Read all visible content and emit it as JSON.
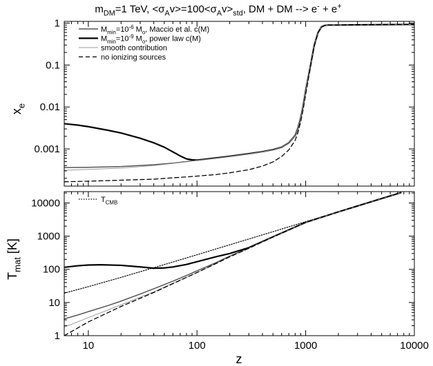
{
  "title": {
    "parts": [
      {
        "t": "m",
        "s": "n"
      },
      {
        "t": "DM",
        "s": "sub"
      },
      {
        "t": "=1 TeV, <",
        "s": "n"
      },
      {
        "t": "σ",
        "s": "n"
      },
      {
        "t": "A",
        "s": "sub"
      },
      {
        "t": "v>=100<",
        "s": "n"
      },
      {
        "t": "σ",
        "s": "n"
      },
      {
        "t": "A",
        "s": "sub"
      },
      {
        "t": "v>",
        "s": "n"
      },
      {
        "t": "std",
        "s": "sub"
      },
      {
        "t": ", DM + DM --> e",
        "s": "n"
      },
      {
        "t": "-",
        "s": "sup"
      },
      {
        "t": " + e",
        "s": "n"
      },
      {
        "t": "+",
        "s": "sup"
      }
    ]
  },
  "chart_data": [
    {
      "type": "line",
      "panel": "top",
      "xscale": "log",
      "yscale": "log",
      "xlim": [
        6,
        10000
      ],
      "ylim": [
        0.00013,
        1.1
      ],
      "xlabel": "",
      "ylabel": {
        "parts": [
          {
            "t": "x",
            "s": "n"
          },
          {
            "t": "e",
            "s": "sub"
          }
        ]
      },
      "yticks": [
        {
          "v": 0.001,
          "label": "0.001"
        },
        {
          "v": 0.01,
          "label": "0.01"
        },
        {
          "v": 0.1,
          "label": "0.1"
        },
        {
          "v": 1,
          "label": "1"
        }
      ],
      "legend_position": "top-left",
      "series": [
        {
          "key": "maccio",
          "color": "#555555",
          "width": 1.5,
          "dash": "",
          "legend": [
            {
              "t": "M",
              "s": "n"
            },
            {
              "t": "min",
              "s": "sub"
            },
            {
              "t": "=10",
              "s": "n"
            },
            {
              "t": "-6",
              "s": "sup"
            },
            {
              "t": " M",
              "s": "n"
            },
            {
              "t": "o",
              "s": "sub"
            },
            {
              "t": ", Maccio et al. c(M)",
              "s": "n"
            }
          ],
          "x": [
            6,
            10,
            20,
            40,
            60,
            80,
            100,
            150,
            200,
            300,
            400,
            500,
            600,
            700,
            800,
            850,
            900,
            950,
            1000,
            1100,
            1200,
            1300,
            1400,
            1500,
            1600,
            2000,
            3000,
            5000,
            10000
          ],
          "y": [
            0.00036,
            0.000365,
            0.00038,
            0.00042,
            0.00046,
            0.0005,
            0.00054,
            0.00061,
            0.00067,
            0.00077,
            0.00086,
            0.00096,
            0.0011,
            0.0014,
            0.0021,
            0.0032,
            0.0055,
            0.011,
            0.025,
            0.09,
            0.3,
            0.6,
            0.82,
            0.88,
            0.9,
            0.9,
            0.91,
            0.92,
            0.93
          ]
        },
        {
          "key": "powerlaw",
          "color": "#000000",
          "width": 2.2,
          "dash": "",
          "legend": [
            {
              "t": "M",
              "s": "n"
            },
            {
              "t": "min",
              "s": "sub"
            },
            {
              "t": "=10",
              "s": "n"
            },
            {
              "t": "-9",
              "s": "sup"
            },
            {
              "t": " M",
              "s": "n"
            },
            {
              "t": "o",
              "s": "sub"
            },
            {
              "t": ", power law c(M)",
              "s": "n"
            }
          ],
          "x": [
            6,
            8,
            10,
            15,
            20,
            30,
            40,
            50,
            60,
            70,
            80,
            90,
            100,
            150,
            200,
            300,
            400,
            500,
            600,
            700,
            800,
            850,
            900,
            950,
            1000,
            1100,
            1200,
            1300,
            1400,
            1500,
            1600,
            2000,
            3000,
            5000,
            10000
          ],
          "y": [
            0.004,
            0.0037,
            0.0034,
            0.0028,
            0.0024,
            0.0018,
            0.0014,
            0.0011,
            0.00085,
            0.00068,
            0.00058,
            0.00055,
            0.00054,
            0.00061,
            0.00067,
            0.00077,
            0.00086,
            0.00096,
            0.0011,
            0.0014,
            0.0021,
            0.0032,
            0.0055,
            0.011,
            0.025,
            0.09,
            0.3,
            0.6,
            0.82,
            0.88,
            0.9,
            0.9,
            0.91,
            0.92,
            0.93
          ]
        },
        {
          "key": "smooth",
          "color": "#9a9a9a",
          "width": 1,
          "dash": "",
          "legend": [
            {
              "t": "smooth contribution",
              "s": "n"
            }
          ],
          "x": [
            6,
            10,
            20,
            40,
            60,
            80,
            100,
            150,
            200,
            300,
            400,
            500,
            600,
            700,
            800,
            850,
            900,
            950,
            1000,
            1100,
            1200,
            1300,
            1400,
            1500,
            1600,
            2000,
            3000,
            5000,
            10000
          ],
          "y": [
            0.00031,
            0.000325,
            0.00035,
            0.0004,
            0.00045,
            0.00049,
            0.00053,
            0.0006,
            0.00066,
            0.00076,
            0.00085,
            0.00095,
            0.0011,
            0.0014,
            0.0021,
            0.0032,
            0.0055,
            0.011,
            0.025,
            0.09,
            0.3,
            0.6,
            0.82,
            0.88,
            0.9,
            0.9,
            0.91,
            0.92,
            0.93
          ]
        },
        {
          "key": "noion",
          "color": "#000000",
          "width": 1.3,
          "dash": "6,4",
          "legend": [
            {
              "t": "no ionizing sources",
              "s": "n"
            }
          ],
          "x": [
            6,
            10,
            20,
            40,
            60,
            80,
            100,
            150,
            200,
            300,
            400,
            500,
            600,
            700,
            800,
            850,
            900,
            950,
            1000,
            1100,
            1200,
            1300,
            1400,
            1500,
            1600,
            2000,
            3000,
            5000,
            10000
          ],
          "y": [
            0.000165,
            0.00017,
            0.00018,
            0.00019,
            0.000205,
            0.000215,
            0.000225,
            0.000245,
            0.00027,
            0.00032,
            0.00039,
            0.00049,
            0.00066,
            0.00095,
            0.0016,
            0.0025,
            0.0045,
            0.009,
            0.02,
            0.08,
            0.28,
            0.58,
            0.8,
            0.88,
            0.9,
            0.9,
            0.91,
            0.92,
            0.93
          ]
        }
      ]
    },
    {
      "type": "line",
      "panel": "bottom",
      "xscale": "log",
      "yscale": "log",
      "xlim": [
        6,
        10000
      ],
      "ylim": [
        1,
        22000
      ],
      "xlabel": "z",
      "ylabel": {
        "parts": [
          {
            "t": "T",
            "s": "n"
          },
          {
            "t": "mat",
            "s": "sub"
          },
          {
            "t": " [K]",
            "s": "n"
          }
        ]
      },
      "xticks": [
        {
          "v": 10,
          "label": "10"
        },
        {
          "v": 100,
          "label": "100"
        },
        {
          "v": 1000,
          "label": "1000"
        },
        {
          "v": 10000,
          "label": "10000"
        }
      ],
      "yticks": [
        {
          "v": 1,
          "label": "1"
        },
        {
          "v": 10,
          "label": "10"
        },
        {
          "v": 100,
          "label": "100"
        },
        {
          "v": 1000,
          "label": "1000"
        },
        {
          "v": 10000,
          "label": "10000"
        }
      ],
      "legend_position": "top-left",
      "series": [
        {
          "key": "tcmb",
          "color": "#000000",
          "width": 1.2,
          "dash": "1.5,2",
          "legend": [
            {
              "t": "T",
              "s": "n"
            },
            {
              "t": "CMB",
              "s": "sub"
            }
          ],
          "x": [
            6,
            10,
            20,
            50,
            100,
            200,
            500,
            1000,
            2000,
            5000,
            7500
          ],
          "y": [
            19.1,
            30,
            57.2,
            139,
            275,
            548,
            1365,
            2728,
            5453,
            13628,
            20440
          ]
        },
        {
          "key": "maccio",
          "color": "#555555",
          "width": 1.5,
          "dash": "",
          "x": [
            6,
            8,
            10,
            15,
            20,
            30,
            40,
            60,
            80,
            100,
            150,
            200,
            300,
            500,
            1000,
            2000,
            5000,
            7500
          ],
          "y": [
            3.2,
            4.2,
            5.3,
            8,
            11,
            18,
            26,
            44,
            65,
            90,
            160,
            250,
            440,
            950,
            2600,
            5400,
            13600,
            20400
          ]
        },
        {
          "key": "powerlaw",
          "color": "#000000",
          "width": 2.2,
          "dash": "",
          "x": [
            6,
            8,
            10,
            13,
            20,
            30,
            40,
            50,
            60,
            80,
            100,
            150,
            200,
            300,
            500,
            1000,
            2000,
            5000,
            7500
          ],
          "y": [
            115,
            128,
            135,
            137,
            132,
            118,
            108,
            110,
            118,
            140,
            170,
            240,
            300,
            450,
            950,
            2600,
            5400,
            13600,
            20400
          ]
        },
        {
          "key": "smooth",
          "color": "#9a9a9a",
          "width": 1,
          "dash": "",
          "x": [
            6,
            10,
            20,
            40,
            60,
            100,
            150,
            200,
            300,
            500,
            1000,
            2000,
            5000,
            7500
          ],
          "y": [
            1.8,
            3.5,
            8.5,
            21,
            38,
            80,
            150,
            240,
            430,
            940,
            2600,
            5400,
            13600,
            20400
          ]
        },
        {
          "key": "noion",
          "color": "#000000",
          "width": 1.3,
          "dash": "6,4",
          "x": [
            6,
            10,
            20,
            40,
            60,
            100,
            150,
            200,
            300,
            500,
            1000,
            2000,
            5000,
            7500
          ],
          "y": [
            1,
            2.6,
            7.6,
            20,
            37,
            80,
            150,
            238,
            430,
            940,
            2600,
            5400,
            13600,
            20400
          ]
        }
      ]
    }
  ]
}
